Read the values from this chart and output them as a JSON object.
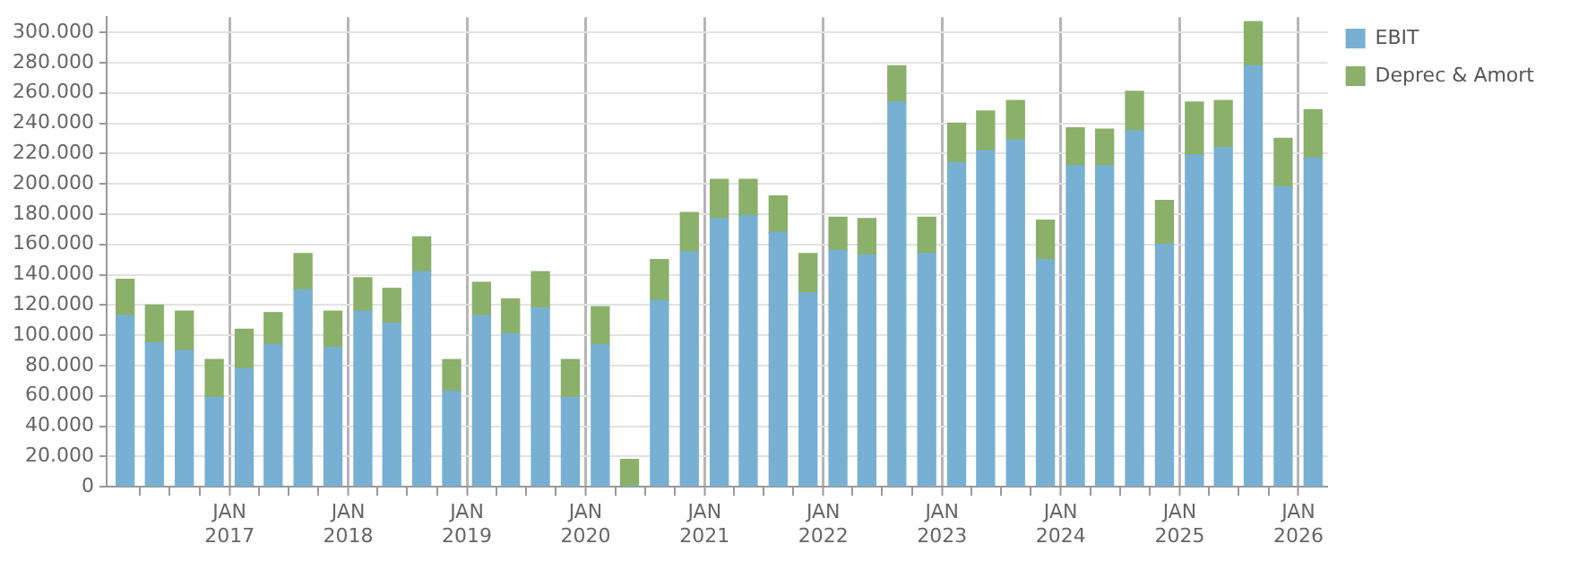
{
  "chart_data": {
    "type": "bar",
    "stacked": true,
    "x": [
      "2016-02-15",
      "2016-05-15",
      "2016-08-15",
      "2016-11-15",
      "2017-02-15",
      "2017-05-15",
      "2017-08-15",
      "2017-11-15",
      "2018-02-15",
      "2018-05-15",
      "2018-08-15",
      "2018-11-15",
      "2019-02-15",
      "2019-05-15",
      "2019-08-15",
      "2019-11-15",
      "2020-02-15",
      "2020-05-15",
      "2020-08-15",
      "2020-11-15",
      "2021-02-15",
      "2021-05-15",
      "2021-08-15",
      "2021-11-15",
      "2022-02-15",
      "2022-05-15",
      "2022-08-15",
      "2022-11-15",
      "2023-02-15",
      "2023-05-15",
      "2023-08-15",
      "2023-11-15",
      "2024-02-15",
      "2024-05-15",
      "2024-08-15",
      "2024-11-15",
      "2025-02-15",
      "2025-05-15",
      "2025-08-15",
      "2025-11-15",
      "2026-02-15"
    ],
    "series": [
      {
        "name": "EBIT",
        "color": "#77b0d3",
        "values": [
          113000,
          95000,
          90000,
          59000,
          78000,
          94000,
          130000,
          92000,
          116000,
          108000,
          142000,
          63000,
          113000,
          101000,
          118000,
          59000,
          94000,
          0,
          123000,
          155000,
          177000,
          179000,
          168000,
          128000,
          156000,
          153000,
          254000,
          154000,
          214000,
          222000,
          229000,
          150000,
          212000,
          212000,
          235000,
          160000,
          219000,
          224000,
          278000,
          198000,
          217000
        ]
      },
      {
        "name": "Deprec & Amort",
        "color": "#8ab06a",
        "values": [
          24000,
          25000,
          26000,
          25000,
          26000,
          21000,
          24000,
          24000,
          22000,
          23000,
          23000,
          21000,
          22000,
          23000,
          24000,
          25000,
          25000,
          18000,
          27000,
          26000,
          26000,
          24000,
          24000,
          26000,
          22000,
          24000,
          24000,
          24000,
          26000,
          26000,
          26000,
          26000,
          25000,
          24000,
          26000,
          29000,
          35000,
          31000,
          29000,
          32000,
          32000
        ]
      }
    ],
    "xlim": [
      "2015-12-20",
      "2026-04-01"
    ],
    "xticks": [
      {
        "value": "2016-04-01",
        "label": null
      },
      {
        "value": "2016-07-01",
        "label": null
      },
      {
        "value": "2016-10-01",
        "label": null
      },
      {
        "value": "2017-01-01",
        "label": "JAN\n2017"
      },
      {
        "value": "2017-04-01",
        "label": null
      },
      {
        "value": "2017-07-01",
        "label": null
      },
      {
        "value": "2017-10-01",
        "label": null
      },
      {
        "value": "2018-01-01",
        "label": "JAN\n2018"
      },
      {
        "value": "2018-04-01",
        "label": null
      },
      {
        "value": "2018-07-01",
        "label": null
      },
      {
        "value": "2018-10-01",
        "label": null
      },
      {
        "value": "2019-01-01",
        "label": "JAN\n2019"
      },
      {
        "value": "2019-04-01",
        "label": null
      },
      {
        "value": "2019-07-01",
        "label": null
      },
      {
        "value": "2019-10-01",
        "label": null
      },
      {
        "value": "2020-01-01",
        "label": "JAN\n2020"
      },
      {
        "value": "2020-04-01",
        "label": null
      },
      {
        "value": "2020-07-01",
        "label": null
      },
      {
        "value": "2020-10-01",
        "label": null
      },
      {
        "value": "2021-01-01",
        "label": "JAN\n2021"
      },
      {
        "value": "2021-04-01",
        "label": null
      },
      {
        "value": "2021-07-01",
        "label": null
      },
      {
        "value": "2021-10-01",
        "label": null
      },
      {
        "value": "2022-01-01",
        "label": "JAN\n2022"
      },
      {
        "value": "2022-04-01",
        "label": null
      },
      {
        "value": "2022-07-01",
        "label": null
      },
      {
        "value": "2022-10-01",
        "label": null
      },
      {
        "value": "2023-01-01",
        "label": "JAN\n2023"
      },
      {
        "value": "2023-04-01",
        "label": null
      },
      {
        "value": "2023-07-01",
        "label": null
      },
      {
        "value": "2023-10-01",
        "label": null
      },
      {
        "value": "2024-01-01",
        "label": "JAN\n2024"
      },
      {
        "value": "2024-04-01",
        "label": null
      },
      {
        "value": "2024-07-01",
        "label": null
      },
      {
        "value": "2024-10-01",
        "label": null
      },
      {
        "value": "2025-01-01",
        "label": "JAN\n2025"
      },
      {
        "value": "2025-04-01",
        "label": null
      },
      {
        "value": "2025-07-01",
        "label": null
      },
      {
        "value": "2025-10-01",
        "label": null
      },
      {
        "value": "2026-01-01",
        "label": "JAN\n2026"
      }
    ],
    "ylim": [
      0,
      310000
    ],
    "yticks": [
      0,
      {
        "value": 20000,
        "label": "20.000"
      },
      {
        "value": 40000,
        "label": "40.000"
      },
      {
        "value": 60000,
        "label": "60.000"
      },
      {
        "value": 80000,
        "label": "80.000"
      },
      {
        "value": 100000,
        "label": "100.000"
      },
      {
        "value": 120000,
        "label": "120.000"
      },
      {
        "value": 140000,
        "label": "140.000"
      },
      {
        "value": 160000,
        "label": "160.000"
      },
      {
        "value": 180000,
        "label": "180.000"
      },
      {
        "value": 200000,
        "label": "200.000"
      },
      {
        "value": 220000,
        "label": "220.000"
      },
      {
        "value": 240000,
        "label": "240.000"
      },
      {
        "value": 260000,
        "label": "260.000"
      },
      {
        "value": 280000,
        "label": "280.000"
      },
      {
        "value": 300000,
        "label": "300.000"
      }
    ],
    "grid": true,
    "legend": "top right"
  }
}
